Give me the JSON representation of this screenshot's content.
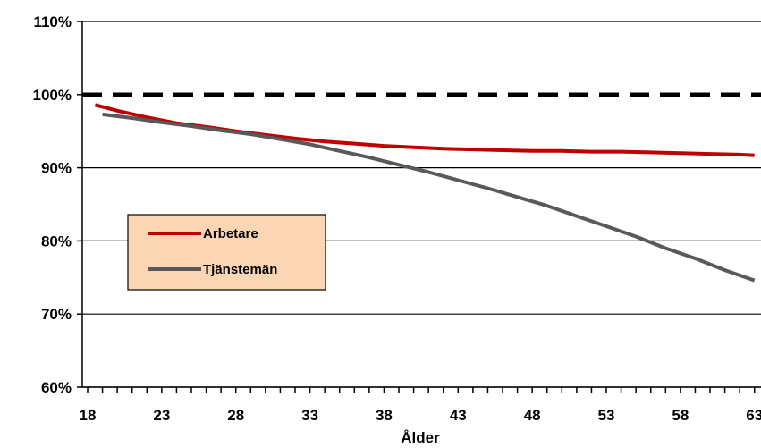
{
  "chart_data": {
    "type": "line",
    "title": "",
    "xlabel": "Ålder",
    "ylabel": "",
    "xlim": [
      18,
      63
    ],
    "ylim": [
      60,
      110
    ],
    "y_ticks": [
      60,
      70,
      80,
      90,
      100,
      110
    ],
    "y_tick_labels": [
      "60%",
      "70%",
      "80%",
      "90%",
      "100%",
      "110%"
    ],
    "x_ticks": [
      18,
      23,
      28,
      33,
      38,
      43,
      48,
      53,
      58,
      63
    ],
    "x_tick_labels": [
      "18",
      "23",
      "28",
      "33",
      "38",
      "43",
      "48",
      "53",
      "58",
      "63"
    ],
    "grid": "horizontal",
    "legend_position": "middle-left",
    "reference_line": {
      "y": 100,
      "style": "dashed",
      "color": "#000000"
    },
    "series": [
      {
        "name": "Arbetare",
        "color": "#c00000",
        "x": [
          18.5,
          20,
          22,
          24,
          26,
          28,
          30,
          32,
          34,
          36,
          38,
          40,
          42,
          44,
          46,
          48,
          50,
          52,
          54,
          56,
          58,
          60,
          62,
          63
        ],
        "y": [
          98.6,
          97.8,
          96.9,
          96.1,
          95.6,
          95.0,
          94.5,
          94.0,
          93.6,
          93.3,
          93.0,
          92.8,
          92.6,
          92.5,
          92.4,
          92.3,
          92.3,
          92.2,
          92.2,
          92.1,
          92.0,
          91.9,
          91.8,
          91.7
        ]
      },
      {
        "name": "Tjänstemän",
        "color": "#595959",
        "x": [
          19,
          21,
          23,
          25,
          27,
          29,
          31,
          33,
          35,
          37,
          39,
          41,
          43,
          45,
          47,
          49,
          51,
          53,
          55,
          57,
          59,
          61,
          63
        ],
        "y": [
          97.3,
          96.8,
          96.2,
          95.7,
          95.1,
          94.6,
          93.9,
          93.2,
          92.3,
          91.4,
          90.4,
          89.4,
          88.3,
          87.2,
          86.0,
          84.8,
          83.4,
          82.0,
          80.6,
          79.0,
          77.6,
          76.0,
          74.6
        ]
      }
    ]
  }
}
